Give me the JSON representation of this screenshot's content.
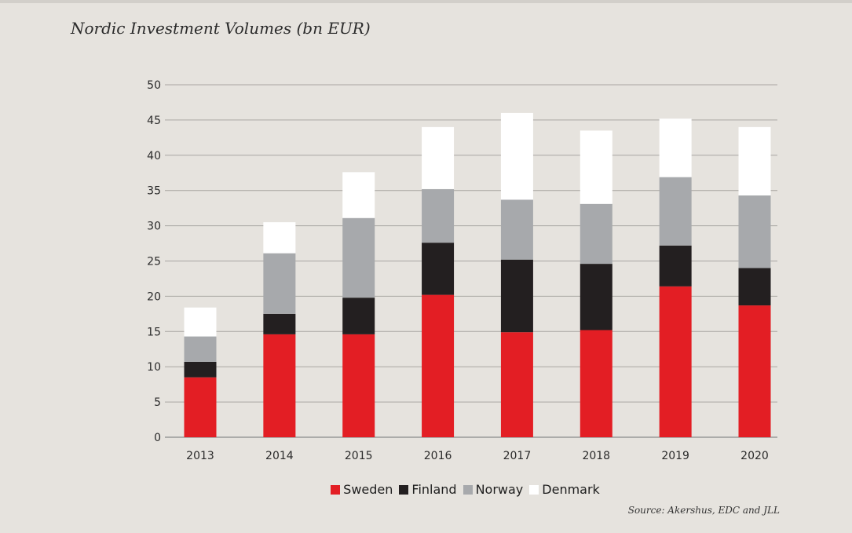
{
  "chart_data": {
    "type": "bar",
    "stacked": true,
    "title": "Nordic Investment Volumes (bn EUR)",
    "xlabel": "",
    "ylabel": "",
    "ylim": [
      0,
      50
    ],
    "yticks": [
      0,
      5,
      10,
      15,
      20,
      25,
      30,
      35,
      40,
      45,
      50
    ],
    "grid": true,
    "legend_position": "bottom",
    "categories": [
      "2013",
      "2014",
      "2015",
      "2016",
      "2017",
      "2018",
      "2019",
      "2020"
    ],
    "series": [
      {
        "name": "Sweden",
        "color": "#e31e24",
        "values": [
          8.5,
          14.6,
          14.6,
          20.2,
          14.9,
          15.2,
          21.4,
          18.7
        ]
      },
      {
        "name": "Finland",
        "color": "#231f20",
        "values": [
          2.2,
          2.9,
          5.2,
          7.4,
          10.3,
          9.4,
          5.8,
          5.3
        ]
      },
      {
        "name": "Norway",
        "color": "#a7a9ac",
        "values": [
          3.6,
          8.6,
          11.3,
          7.6,
          8.5,
          8.5,
          9.7,
          10.3
        ]
      },
      {
        "name": "Denmark",
        "color": "#ffffff",
        "values": [
          4.1,
          4.4,
          6.5,
          8.8,
          12.3,
          10.4,
          8.3,
          9.7
        ]
      }
    ],
    "source": "Source: Akershus, EDC and JLL"
  }
}
